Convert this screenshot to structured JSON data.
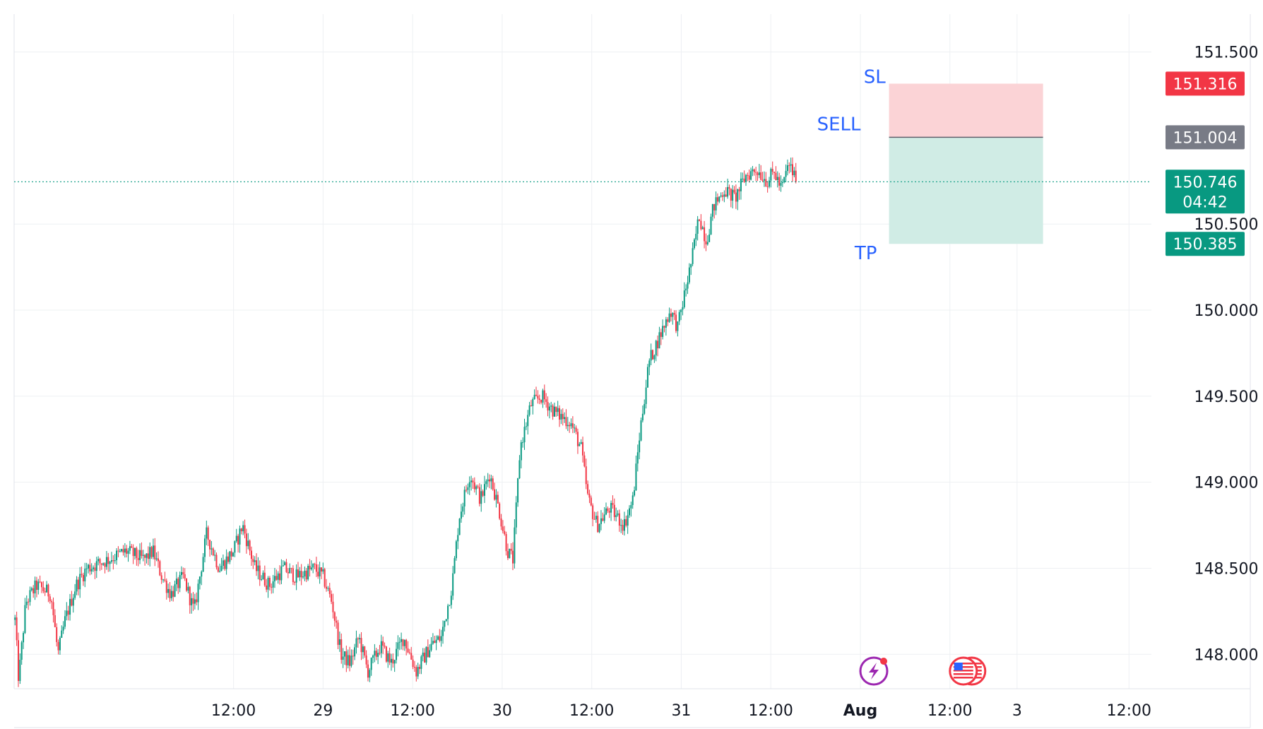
{
  "chart_data": {
    "type": "candlestick",
    "ylim": [
      147.8,
      151.72
    ],
    "y_ticks": [
      "151.500",
      "150.500",
      "150.000",
      "149.500",
      "149.000",
      "148.500",
      "148.000"
    ],
    "x_ticks": [
      {
        "label": "12:00",
        "t": 0.5
      },
      {
        "label": "29",
        "t": 1.0
      },
      {
        "label": "12:00",
        "t": 1.5
      },
      {
        "label": "30",
        "t": 2.0
      },
      {
        "label": "12:00",
        "t": 2.5
      },
      {
        "label": "31",
        "t": 3.0
      },
      {
        "label": "12:00",
        "t": 3.5
      },
      {
        "label": "Aug",
        "t": 4.0,
        "bold": true
      },
      {
        "label": "12:00",
        "t": 4.5
      },
      {
        "label": "3",
        "t": 4.875
      },
      {
        "label": "12:00",
        "t": 5.5
      }
    ],
    "x_range": [
      -0.725,
      5.625
    ],
    "grid": true,
    "price_path": [
      [
        -0.72,
        148.2
      ],
      [
        -0.7,
        147.85
      ],
      [
        -0.66,
        148.3
      ],
      [
        -0.6,
        148.4
      ],
      [
        -0.52,
        148.35
      ],
      [
        -0.48,
        148.0
      ],
      [
        -0.44,
        148.2
      ],
      [
        -0.38,
        148.4
      ],
      [
        -0.32,
        148.5
      ],
      [
        -0.2,
        148.55
      ],
      [
        -0.1,
        148.6
      ],
      [
        -0.0,
        148.55
      ],
      [
        0.05,
        148.6
      ],
      [
        0.1,
        148.45
      ],
      [
        0.15,
        148.35
      ],
      [
        0.22,
        148.45
      ],
      [
        0.28,
        148.25
      ],
      [
        0.35,
        148.7
      ],
      [
        0.42,
        148.5
      ],
      [
        0.5,
        148.6
      ],
      [
        0.55,
        148.75
      ],
      [
        0.62,
        148.5
      ],
      [
        0.7,
        148.4
      ],
      [
        0.78,
        148.5
      ],
      [
        0.85,
        148.45
      ],
      [
        0.95,
        148.5
      ],
      [
        1.0,
        148.45
      ],
      [
        1.05,
        148.3
      ],
      [
        1.1,
        148.0
      ],
      [
        1.15,
        147.95
      ],
      [
        1.2,
        148.1
      ],
      [
        1.25,
        147.9
      ],
      [
        1.32,
        148.05
      ],
      [
        1.38,
        147.95
      ],
      [
        1.45,
        148.1
      ],
      [
        1.52,
        147.9
      ],
      [
        1.6,
        148.05
      ],
      [
        1.66,
        148.1
      ],
      [
        1.72,
        148.4
      ],
      [
        1.76,
        148.8
      ],
      [
        1.82,
        149.05
      ],
      [
        1.88,
        148.9
      ],
      [
        1.93,
        149.05
      ],
      [
        1.98,
        148.85
      ],
      [
        2.03,
        148.6
      ],
      [
        2.06,
        148.55
      ],
      [
        2.1,
        149.2
      ],
      [
        2.16,
        149.45
      ],
      [
        2.22,
        149.5
      ],
      [
        2.3,
        149.4
      ],
      [
        2.38,
        149.35
      ],
      [
        2.44,
        149.2
      ],
      [
        2.48,
        148.9
      ],
      [
        2.53,
        148.75
      ],
      [
        2.6,
        148.85
      ],
      [
        2.68,
        148.75
      ],
      [
        2.73,
        148.9
      ],
      [
        2.77,
        149.3
      ],
      [
        2.82,
        149.7
      ],
      [
        2.88,
        149.85
      ],
      [
        2.94,
        150.0
      ],
      [
        2.98,
        149.9
      ],
      [
        3.02,
        150.1
      ],
      [
        3.06,
        150.3
      ],
      [
        3.1,
        150.55
      ],
      [
        3.14,
        150.4
      ],
      [
        3.18,
        150.6
      ],
      [
        3.24,
        150.7
      ],
      [
        3.3,
        150.65
      ],
      [
        3.36,
        150.78
      ],
      [
        3.42,
        150.82
      ],
      [
        3.48,
        150.75
      ],
      [
        3.52,
        150.8
      ],
      [
        3.56,
        150.7
      ],
      [
        3.6,
        150.85
      ],
      [
        3.64,
        150.76
      ]
    ],
    "last_price": 150.746,
    "countdown": "04:42",
    "position": {
      "type": "short",
      "entry_label": "SELL",
      "entry": 151.004,
      "stop_label": "SL",
      "stop": 151.316,
      "target_label": "TP",
      "target": 150.385
    },
    "colors": {
      "up": "#089981",
      "down": "#f23645",
      "stop_zone": "#fbd3d6",
      "target_zone": "#d0ece5",
      "entry_badge": "#787b86",
      "stop_badge": "#f23645",
      "target_badge": "#089981",
      "price_badge": "#089981",
      "annotation_text": "#2962ff"
    },
    "events": [
      {
        "name": "lightning-event-icon",
        "t": 4.075
      },
      {
        "name": "us-flag-event-icon",
        "t": 4.575
      }
    ]
  }
}
